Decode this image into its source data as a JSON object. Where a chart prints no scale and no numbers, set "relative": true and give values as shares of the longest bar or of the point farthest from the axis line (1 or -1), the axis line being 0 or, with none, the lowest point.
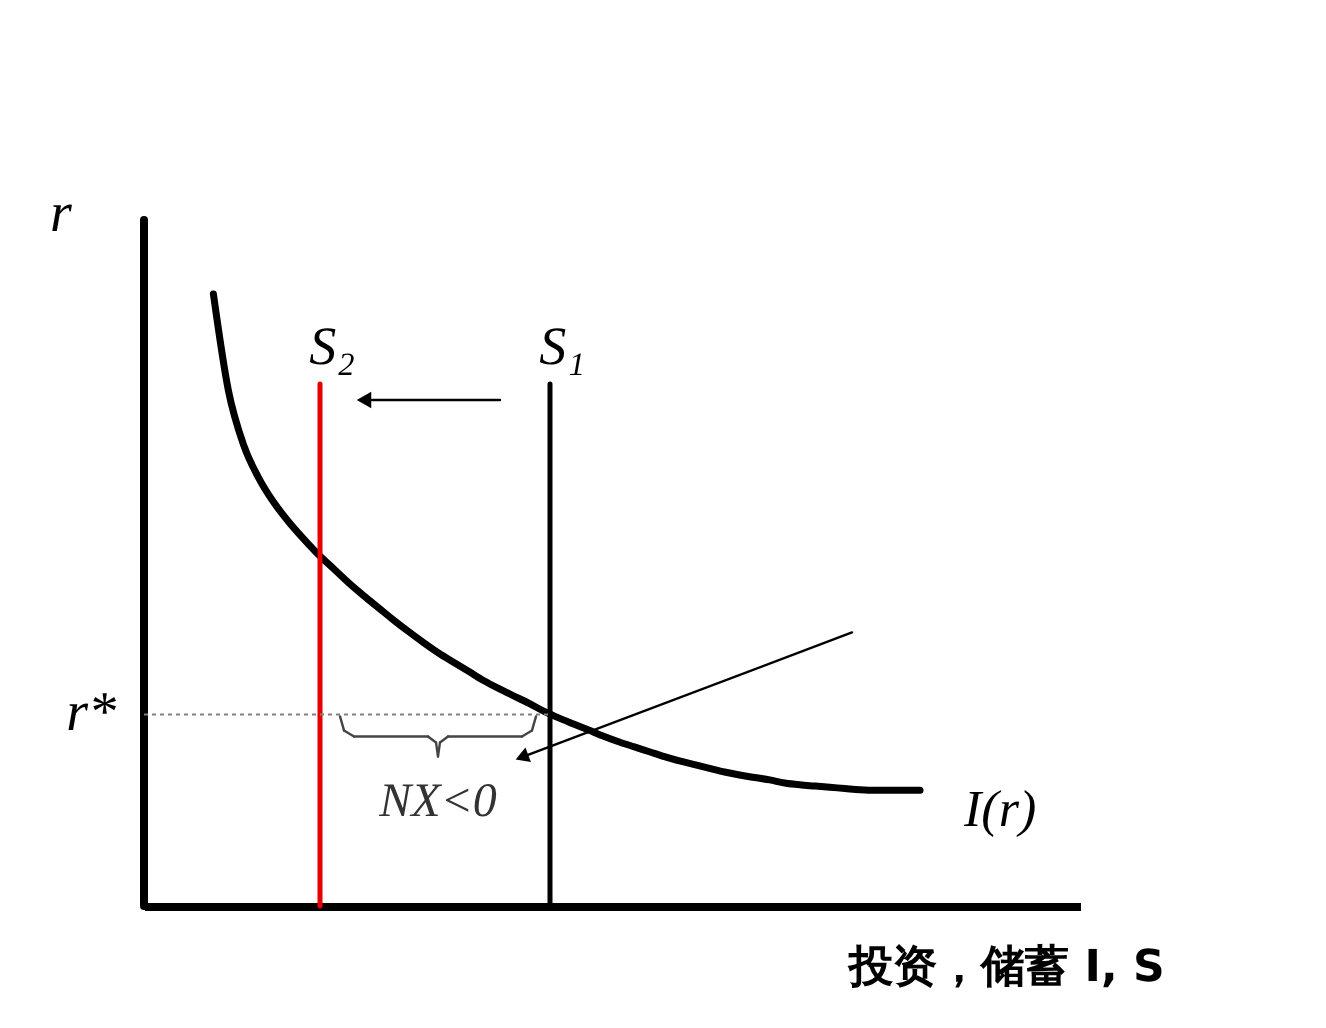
{
  "chart_data": {
    "type": "line",
    "relative": true,
    "xlabel": "投资，储蓄 I, S",
    "ylabel": "r",
    "categories": [
      null,
      null,
      null,
      null,
      null,
      null,
      null,
      null,
      null,
      null,
      null,
      null,
      null,
      null,
      null,
      null,
      null,
      null,
      null,
      null,
      null,
      null,
      null,
      null,
      null,
      null,
      null,
      null,
      null,
      null,
      null,
      null,
      null,
      null,
      null,
      null,
      null,
      null,
      null,
      null,
      null,
      null,
      null,
      null,
      null,
      null,
      null,
      null
    ],
    "series": [
      {
        "name": "I(r)",
        "color": "#000000",
        "values": [
          1.0,
          0.842,
          0.754,
          0.7,
          0.66,
          0.628,
          0.6,
          0.574,
          0.551,
          0.528,
          0.507,
          0.487,
          0.467,
          0.448,
          0.43,
          0.413,
          0.398,
          0.383,
          0.368,
          0.355,
          0.343,
          0.331,
          0.318,
          0.307,
          0.297,
          0.287,
          0.277,
          0.268,
          0.26,
          0.252,
          0.244,
          0.237,
          0.231,
          0.225,
          0.219,
          0.214,
          0.21,
          0.206,
          0.201,
          0.198,
          0.196,
          0.194,
          0.192,
          0.19,
          0.189,
          0.189,
          0.189,
          0.189
        ]
      }
    ],
    "ref_lines": [
      {
        "axis": "y",
        "value": 0.313,
        "label": "r*",
        "color": "#808080",
        "line_style": "dotted"
      }
    ],
    "annotations": [
      "S₂",
      "S₁",
      "NX<0"
    ]
  }
}
